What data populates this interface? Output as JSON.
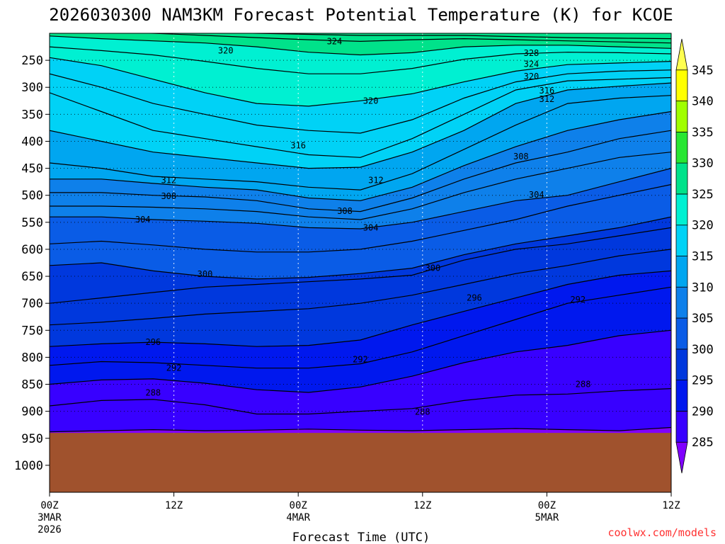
{
  "chart_data": {
    "type": "heatmap",
    "title": "2026030300 NAM3KM Forecast Potential Temperature (K) for KCOE",
    "xlabel": "Forecast Time (UTC)",
    "ylabel": "",
    "credit": "coolwx.com/models",
    "x_range_hours": [
      0,
      60
    ],
    "x_ticks": [
      {
        "hour": 0,
        "label": "00Z",
        "sub1": "3MAR",
        "sub2": "2026"
      },
      {
        "hour": 12,
        "label": "12Z",
        "sub1": "",
        "sub2": ""
      },
      {
        "hour": 24,
        "label": "00Z",
        "sub1": "4MAR",
        "sub2": ""
      },
      {
        "hour": 36,
        "label": "12Z",
        "sub1": "",
        "sub2": ""
      },
      {
        "hour": 48,
        "label": "00Z",
        "sub1": "5MAR",
        "sub2": ""
      },
      {
        "hour": 60,
        "label": "12Z",
        "sub1": "",
        "sub2": ""
      }
    ],
    "y_range_hpa": [
      200,
      1050
    ],
    "y_ticks": [
      250,
      300,
      350,
      400,
      450,
      500,
      550,
      600,
      650,
      700,
      750,
      800,
      850,
      900,
      950,
      1000
    ],
    "surface_pressure_hpa": 940,
    "colorbar": {
      "levels": [
        285,
        290,
        295,
        300,
        305,
        310,
        315,
        320,
        325,
        330,
        335,
        340,
        345
      ],
      "labels": [
        "285",
        "290",
        "295",
        "300",
        "305",
        "310",
        "315",
        "320",
        "325",
        "330",
        "335",
        "340",
        "345"
      ],
      "colors": [
        "#8000ff",
        "#3800ff",
        "#0018ee",
        "#0038dd",
        "#0a5ce6",
        "#0e80ea",
        "#00a6f0",
        "#00d2f6",
        "#00f0d2",
        "#00e28a",
        "#28e632",
        "#a0ff00",
        "#ffff00",
        "#ffff50"
      ]
    },
    "contour_interval": 2,
    "contour_labels": [
      {
        "value": "324",
        "hour": 27.5,
        "p": 215
      },
      {
        "value": "320",
        "hour": 17.0,
        "p": 232
      },
      {
        "value": "328",
        "hour": 46.5,
        "p": 237
      },
      {
        "value": "324",
        "hour": 46.5,
        "p": 257
      },
      {
        "value": "320",
        "hour": 46.5,
        "p": 280
      },
      {
        "value": "316",
        "hour": 48.0,
        "p": 306
      },
      {
        "value": "312",
        "hour": 48.0,
        "p": 322
      },
      {
        "value": "320",
        "hour": 31.0,
        "p": 325
      },
      {
        "value": "316",
        "hour": 24.0,
        "p": 408
      },
      {
        "value": "308",
        "hour": 45.5,
        "p": 428
      },
      {
        "value": "312",
        "hour": 11.5,
        "p": 472
      },
      {
        "value": "312",
        "hour": 31.5,
        "p": 472
      },
      {
        "value": "308",
        "hour": 11.5,
        "p": 502
      },
      {
        "value": "304",
        "hour": 47.0,
        "p": 499
      },
      {
        "value": "308",
        "hour": 28.5,
        "p": 529
      },
      {
        "value": "304",
        "hour": 9.0,
        "p": 545
      },
      {
        "value": "304",
        "hour": 31.0,
        "p": 560
      },
      {
        "value": "300",
        "hour": 37.0,
        "p": 635
      },
      {
        "value": "300",
        "hour": 15.0,
        "p": 646
      },
      {
        "value": "296",
        "hour": 41.0,
        "p": 690
      },
      {
        "value": "292",
        "hour": 51.0,
        "p": 693
      },
      {
        "value": "296",
        "hour": 10.0,
        "p": 772
      },
      {
        "value": "292",
        "hour": 30.0,
        "p": 804
      },
      {
        "value": "292",
        "hour": 12.0,
        "p": 820
      },
      {
        "value": "288",
        "hour": 51.5,
        "p": 850
      },
      {
        "value": "288",
        "hour": 10.0,
        "p": 866
      },
      {
        "value": "288",
        "hour": 36.0,
        "p": 901
      }
    ],
    "series": [
      {
        "name": "theta_285",
        "value": 285,
        "p": [
          938,
          936,
          934,
          936,
          935,
          933,
          935,
          936,
          934,
          932,
          934,
          936,
          930
        ]
      },
      {
        "name": "theta_288",
        "value": 288,
        "p": [
          890,
          880,
          878,
          888,
          905,
          905,
          900,
          895,
          880,
          870,
          868,
          862,
          858
        ]
      },
      {
        "name": "theta_290",
        "value": 290,
        "p": [
          850,
          842,
          840,
          848,
          860,
          865,
          855,
          835,
          810,
          790,
          778,
          760,
          750
        ]
      },
      {
        "name": "theta_292",
        "value": 292,
        "p": [
          815,
          808,
          810,
          815,
          820,
          820,
          812,
          790,
          760,
          730,
          700,
          685,
          670
        ]
      },
      {
        "name": "theta_294",
        "value": 294,
        "p": [
          780,
          775,
          772,
          775,
          780,
          778,
          768,
          740,
          715,
          690,
          665,
          648,
          640
        ]
      },
      {
        "name": "theta_296",
        "value": 296,
        "p": [
          740,
          735,
          728,
          720,
          715,
          710,
          700,
          685,
          665,
          645,
          630,
          612,
          600
        ]
      },
      {
        "name": "theta_298",
        "value": 298,
        "p": [
          700,
          690,
          680,
          670,
          665,
          660,
          655,
          648,
          620,
          600,
          590,
          575,
          560
        ]
      },
      {
        "name": "theta_300",
        "value": 300,
        "p": [
          630,
          625,
          640,
          650,
          655,
          652,
          645,
          635,
          610,
          590,
          575,
          560,
          540
        ]
      },
      {
        "name": "theta_302",
        "value": 302,
        "p": [
          590,
          585,
          592,
          600,
          605,
          605,
          600,
          585,
          565,
          545,
          520,
          500,
          480
        ]
      },
      {
        "name": "theta_304",
        "value": 304,
        "p": [
          540,
          540,
          545,
          548,
          552,
          560,
          562,
          550,
          530,
          510,
          500,
          475,
          450
        ]
      },
      {
        "name": "theta_306",
        "value": 306,
        "p": [
          520,
          520,
          522,
          525,
          530,
          540,
          545,
          525,
          495,
          470,
          450,
          430,
          420
        ]
      },
      {
        "name": "theta_308",
        "value": 308,
        "p": [
          495,
          495,
          500,
          503,
          510,
          525,
          530,
          505,
          470,
          440,
          420,
          395,
          380
        ]
      },
      {
        "name": "theta_310",
        "value": 310,
        "p": [
          470,
          470,
          478,
          485,
          490,
          505,
          510,
          485,
          445,
          410,
          380,
          360,
          345
        ]
      },
      {
        "name": "theta_312",
        "value": 312,
        "p": [
          440,
          450,
          465,
          470,
          475,
          485,
          490,
          460,
          415,
          370,
          330,
          320,
          315
        ]
      },
      {
        "name": "theta_314",
        "value": 314,
        "p": [
          380,
          400,
          420,
          430,
          440,
          450,
          448,
          420,
          380,
          330,
          305,
          298,
          292
        ]
      },
      {
        "name": "theta_316",
        "value": 316,
        "p": [
          310,
          345,
          380,
          395,
          410,
          425,
          430,
          395,
          350,
          305,
          288,
          285,
          282
        ]
      },
      {
        "name": "theta_318",
        "value": 318,
        "p": [
          275,
          300,
          330,
          350,
          370,
          380,
          385,
          360,
          320,
          290,
          275,
          270,
          268
        ]
      },
      {
        "name": "theta_320",
        "value": 320,
        "p": [
          245,
          260,
          285,
          310,
          330,
          335,
          325,
          312,
          290,
          270,
          258,
          255,
          252
        ]
      },
      {
        "name": "theta_322",
        "value": 322,
        "p": [
          225,
          232,
          240,
          252,
          265,
          275,
          275,
          265,
          248,
          238,
          235,
          236,
          238
        ]
      },
      {
        "name": "theta_324",
        "value": 324,
        "p": [
          205,
          210,
          214,
          218,
          225,
          235,
          240,
          236,
          225,
          222,
          222,
          225,
          228
        ]
      },
      {
        "name": "theta_326",
        "value": 326,
        "p": [
          198,
          198,
          200,
          204,
          208,
          212,
          215,
          212,
          210,
          212,
          214,
          216,
          218
        ]
      },
      {
        "name": "theta_328",
        "value": 328,
        "p": [
          198,
          198,
          198,
          198,
          200,
          202,
          204,
          204,
          204,
          206,
          208,
          209,
          210
        ]
      }
    ]
  }
}
